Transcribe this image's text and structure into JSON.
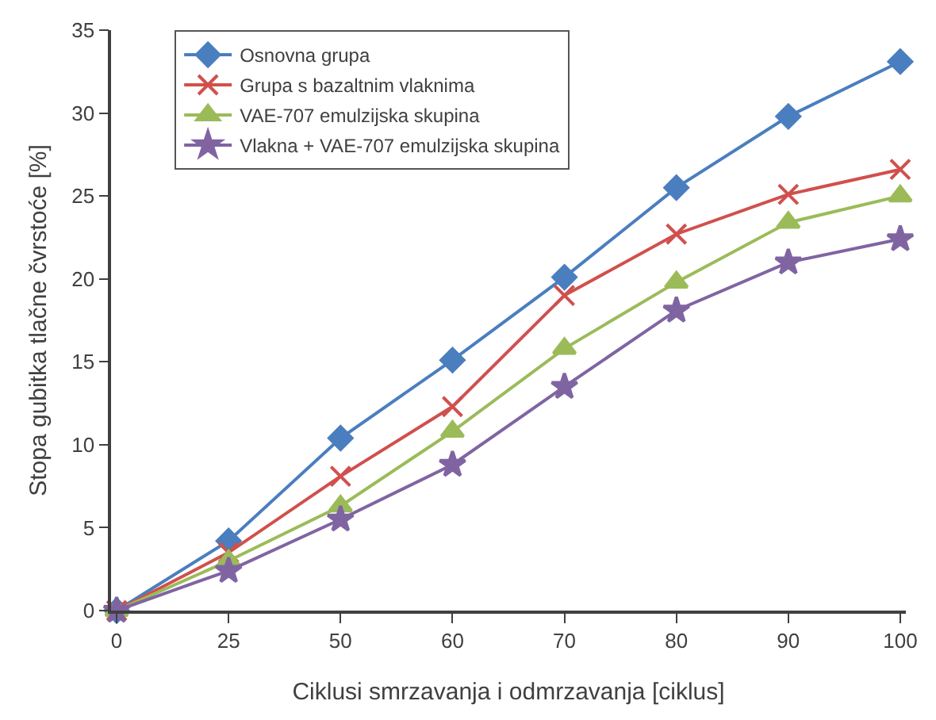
{
  "chart_data": {
    "type": "line",
    "xlabel": "Ciklusi smrzavanja i odmrzavanja [ciklus]",
    "ylabel": "Stopa gubitka tlačne čvrstoće [%]",
    "categories": [
      "0",
      "25",
      "50",
      "60",
      "70",
      "80",
      "90",
      "100"
    ],
    "ylim": [
      0,
      35
    ],
    "yticks": [
      0,
      5,
      10,
      15,
      20,
      25,
      30,
      35
    ],
    "legend": "top left",
    "line_style": "solid",
    "series": [
      {
        "name": "Osnovna grupa",
        "color": "#4a7ebf",
        "marker": "diamond",
        "values": [
          0,
          4.2,
          10.4,
          15.1,
          20.1,
          25.5,
          29.8,
          33.1
        ]
      },
      {
        "name": "Grupa s bazaltnim vlaknima",
        "color": "#d0504d",
        "marker": "cross",
        "values": [
          0,
          3.5,
          8.1,
          12.3,
          19.0,
          22.7,
          25.1,
          26.6
        ]
      },
      {
        "name": "VAE-707 emulzijska skupina",
        "color": "#9bbb59",
        "marker": "triangle",
        "values": [
          0,
          3.0,
          6.3,
          10.8,
          15.8,
          19.8,
          23.4,
          25.0
        ]
      },
      {
        "name": "Vlakna + VAE-707 emulzijska skupina",
        "color": "#8064a2",
        "marker": "star",
        "values": [
          0,
          2.4,
          5.5,
          8.8,
          13.5,
          18.1,
          21.0,
          22.4
        ]
      }
    ]
  }
}
